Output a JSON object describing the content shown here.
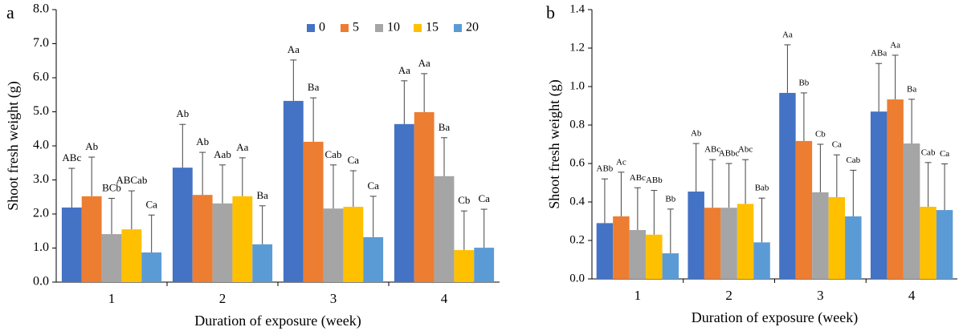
{
  "chart_data": [
    {
      "type": "bar",
      "panel_label": "a",
      "y_label": "Shoot fresh weight (g)",
      "x_label": "Duration of exposure (week)",
      "categories": [
        "1",
        "2",
        "3",
        "4"
      ],
      "ylim": [
        0,
        8
      ],
      "yticks": [
        {
          "value": 0,
          "label": "0.0"
        },
        {
          "value": 1,
          "label": "1.0"
        },
        {
          "value": 2,
          "label": "2.0"
        },
        {
          "value": 3,
          "label": "3.0"
        },
        {
          "value": 4,
          "label": "4.0"
        },
        {
          "value": 5,
          "label": "5.0"
        },
        {
          "value": 6,
          "label": "6.0"
        },
        {
          "value": 7,
          "label": "7.0"
        },
        {
          "value": 8,
          "label": "8.0"
        }
      ],
      "legend": "top-right",
      "series": [
        {
          "name": "0",
          "color": "#4472c4",
          "values": [
            2.19,
            3.36,
            5.32,
            4.64
          ],
          "errors": [
            1.15,
            1.27,
            1.2,
            1.27
          ],
          "labels": [
            "ABc",
            "Ab",
            "Aa",
            "Aa"
          ]
        },
        {
          "name": "5",
          "color": "#ed7d31",
          "values": [
            2.52,
            2.56,
            4.12,
            4.99
          ],
          "errors": [
            1.15,
            1.25,
            1.29,
            1.13
          ],
          "labels": [
            "Ab",
            "Ab",
            "Ba",
            "Aa"
          ]
        },
        {
          "name": "10",
          "color": "#a5a5a5",
          "values": [
            1.41,
            2.31,
            2.16,
            3.11
          ],
          "errors": [
            1.05,
            1.13,
            1.28,
            1.13
          ],
          "labels": [
            "BCb",
            "Aab",
            "Cab",
            "Ba"
          ]
        },
        {
          "name": "15",
          "color": "#ffc000",
          "values": [
            1.55,
            2.52,
            2.21,
            0.94
          ],
          "errors": [
            1.13,
            1.13,
            1.06,
            1.15
          ],
          "labels": [
            "ABCab",
            "Aa",
            "Ca",
            "Cb"
          ]
        },
        {
          "name": "20",
          "color": "#5b9bd5",
          "values": [
            0.87,
            1.11,
            1.32,
            1.01
          ],
          "errors": [
            1.1,
            1.13,
            1.2,
            1.13
          ],
          "labels": [
            "Ca",
            "Ba",
            "Ca",
            "Ca"
          ]
        }
      ]
    },
    {
      "type": "bar",
      "panel_label": "b",
      "y_label": "Shoot fresh weight (g)",
      "x_label": "Duration of exposure (week)",
      "categories": [
        "1",
        "2",
        "3",
        "4"
      ],
      "ylim": [
        0,
        1.4
      ],
      "yticks": [
        {
          "value": 0,
          "label": "0.0"
        },
        0.2,
        0.4,
        0.6,
        0.8,
        {
          "value": 1,
          "label": "1.0"
        },
        1.2,
        1.4
      ],
      "legend": false,
      "series": [
        {
          "name": "0",
          "color": "#4472c4",
          "values": [
            0.29,
            0.454,
            0.967,
            0.87
          ],
          "errors": [
            0.23,
            0.25,
            0.25,
            0.25
          ],
          "labels": [
            "ABb",
            "Ab",
            "Aa",
            "ABa"
          ]
        },
        {
          "name": "5",
          "color": "#ed7d31",
          "values": [
            0.325,
            0.37,
            0.717,
            0.933
          ],
          "errors": [
            0.23,
            0.25,
            0.25,
            0.23
          ],
          "labels": [
            "Ac",
            "ABc",
            "Bb",
            "Aa"
          ]
        },
        {
          "name": "10",
          "color": "#a5a5a5",
          "values": [
            0.254,
            0.37,
            0.45,
            0.704
          ],
          "errors": [
            0.22,
            0.23,
            0.25,
            0.23
          ],
          "labels": [
            "ABc",
            "ABbc",
            "Cb",
            "Ba"
          ]
        },
        {
          "name": "15",
          "color": "#ffc000",
          "values": [
            0.23,
            0.39,
            0.425,
            0.375
          ],
          "errors": [
            0.23,
            0.23,
            0.22,
            0.23
          ],
          "labels": [
            "ABb",
            "Abc",
            "Ca",
            "Cab"
          ]
        },
        {
          "name": "20",
          "color": "#5b9bd5",
          "values": [
            0.133,
            0.19,
            0.325,
            0.358
          ],
          "errors": [
            0.23,
            0.23,
            0.24,
            0.24
          ],
          "labels": [
            "Bb",
            "Bab",
            "Cab",
            "Ca"
          ]
        }
      ]
    }
  ]
}
